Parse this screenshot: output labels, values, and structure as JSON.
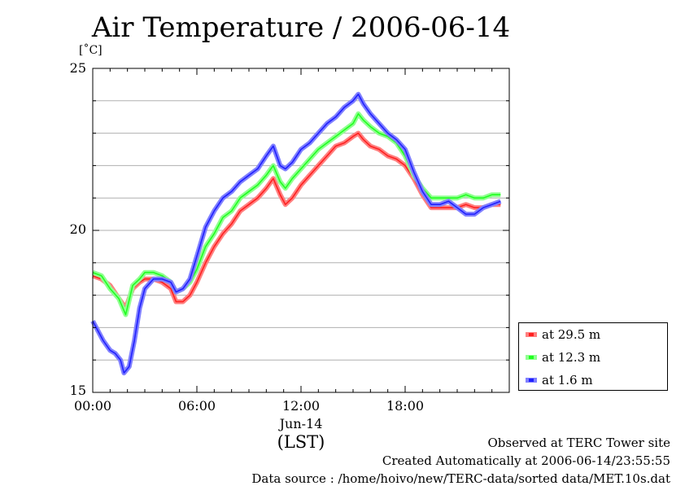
{
  "title": "Air Temperature / 2006-06-14",
  "unit": "[˚C]",
  "date_label": "Jun-14",
  "xlabel": "(LST)",
  "footer": {
    "line1": "Observed at TERC Tower site",
    "line2": "Created Automatically at 2006-06-14/23:55:55",
    "line3": "Data source : /home/hoivo/new/TERC-data/sorted  data/MET.10s.dat"
  },
  "chart_data": {
    "type": "line",
    "title": "Air Temperature / 2006-06-14",
    "xlabel": "(LST)",
    "ylabel": "[˚C]",
    "xlim": [
      0,
      24
    ],
    "ylim": [
      15,
      25
    ],
    "x_ticks": [
      "00:00",
      "06:00",
      "12:00",
      "18:00"
    ],
    "y_ticks": [
      "15",
      "20",
      "25"
    ],
    "grid": true,
    "legend": "bottom-right",
    "series": [
      {
        "name": "at 29.5 m",
        "color": "#ff2020",
        "light": "#ff8080",
        "points": [
          [
            0,
            18.6
          ],
          [
            0.5,
            18.5
          ],
          [
            1,
            18.3
          ],
          [
            1.5,
            17.9
          ],
          [
            1.9,
            17.6
          ],
          [
            2.3,
            18.2
          ],
          [
            2.7,
            18.4
          ],
          [
            3,
            18.5
          ],
          [
            3.5,
            18.5
          ],
          [
            4,
            18.4
          ],
          [
            4.5,
            18.2
          ],
          [
            4.8,
            17.8
          ],
          [
            5.2,
            17.8
          ],
          [
            5.6,
            18.0
          ],
          [
            6,
            18.4
          ],
          [
            6.5,
            19.0
          ],
          [
            7,
            19.5
          ],
          [
            7.5,
            19.9
          ],
          [
            8,
            20.2
          ],
          [
            8.5,
            20.6
          ],
          [
            9,
            20.8
          ],
          [
            9.5,
            21.0
          ],
          [
            10,
            21.3
          ],
          [
            10.4,
            21.6
          ],
          [
            10.8,
            21.1
          ],
          [
            11.1,
            20.8
          ],
          [
            11.5,
            21.0
          ],
          [
            12,
            21.4
          ],
          [
            12.5,
            21.7
          ],
          [
            13,
            22.0
          ],
          [
            13.5,
            22.3
          ],
          [
            14,
            22.6
          ],
          [
            14.5,
            22.7
          ],
          [
            15,
            22.9
          ],
          [
            15.3,
            23.0
          ],
          [
            15.6,
            22.8
          ],
          [
            16,
            22.6
          ],
          [
            16.5,
            22.5
          ],
          [
            17,
            22.3
          ],
          [
            17.5,
            22.2
          ],
          [
            18,
            22.0
          ],
          [
            18.5,
            21.6
          ],
          [
            19,
            21.1
          ],
          [
            19.5,
            20.7
          ],
          [
            20,
            20.7
          ],
          [
            20.5,
            20.7
          ],
          [
            21,
            20.7
          ],
          [
            21.5,
            20.8
          ],
          [
            22,
            20.7
          ],
          [
            22.5,
            20.7
          ],
          [
            23,
            20.8
          ],
          [
            23.5,
            20.8
          ]
        ]
      },
      {
        "name": "at 12.3 m",
        "color": "#20ff20",
        "light": "#90ff90",
        "points": [
          [
            0,
            18.7
          ],
          [
            0.5,
            18.6
          ],
          [
            1,
            18.2
          ],
          [
            1.5,
            17.9
          ],
          [
            1.9,
            17.4
          ],
          [
            2.3,
            18.3
          ],
          [
            2.7,
            18.5
          ],
          [
            3,
            18.7
          ],
          [
            3.5,
            18.7
          ],
          [
            4,
            18.6
          ],
          [
            4.5,
            18.4
          ],
          [
            4.8,
            18.1
          ],
          [
            5.2,
            18.2
          ],
          [
            5.6,
            18.4
          ],
          [
            6,
            18.8
          ],
          [
            6.5,
            19.5
          ],
          [
            7,
            19.9
          ],
          [
            7.5,
            20.4
          ],
          [
            8,
            20.6
          ],
          [
            8.5,
            21.0
          ],
          [
            9,
            21.2
          ],
          [
            9.5,
            21.4
          ],
          [
            10,
            21.7
          ],
          [
            10.4,
            22.0
          ],
          [
            10.8,
            21.5
          ],
          [
            11.1,
            21.3
          ],
          [
            11.5,
            21.6
          ],
          [
            12,
            21.9
          ],
          [
            12.5,
            22.2
          ],
          [
            13,
            22.5
          ],
          [
            13.5,
            22.7
          ],
          [
            14,
            22.9
          ],
          [
            14.5,
            23.1
          ],
          [
            15,
            23.3
          ],
          [
            15.3,
            23.6
          ],
          [
            15.6,
            23.4
          ],
          [
            16,
            23.2
          ],
          [
            16.5,
            23.0
          ],
          [
            17,
            22.9
          ],
          [
            17.5,
            22.7
          ],
          [
            18,
            22.3
          ],
          [
            18.5,
            21.7
          ],
          [
            19,
            21.3
          ],
          [
            19.5,
            21.0
          ],
          [
            20,
            21.0
          ],
          [
            20.5,
            21.0
          ],
          [
            21,
            21.0
          ],
          [
            21.5,
            21.1
          ],
          [
            22,
            21.0
          ],
          [
            22.5,
            21.0
          ],
          [
            23,
            21.1
          ],
          [
            23.5,
            21.1
          ]
        ]
      },
      {
        "name": "at 1.6 m",
        "color": "#2020ff",
        "light": "#8080ff",
        "points": [
          [
            0,
            17.2
          ],
          [
            0.3,
            16.9
          ],
          [
            0.6,
            16.6
          ],
          [
            1,
            16.3
          ],
          [
            1.3,
            16.2
          ],
          [
            1.6,
            16.0
          ],
          [
            1.8,
            15.6
          ],
          [
            2.1,
            15.8
          ],
          [
            2.4,
            16.6
          ],
          [
            2.7,
            17.6
          ],
          [
            3,
            18.2
          ],
          [
            3.5,
            18.5
          ],
          [
            4,
            18.5
          ],
          [
            4.5,
            18.4
          ],
          [
            4.8,
            18.1
          ],
          [
            5.2,
            18.2
          ],
          [
            5.6,
            18.5
          ],
          [
            6,
            19.2
          ],
          [
            6.5,
            20.1
          ],
          [
            7,
            20.6
          ],
          [
            7.5,
            21.0
          ],
          [
            8,
            21.2
          ],
          [
            8.5,
            21.5
          ],
          [
            9,
            21.7
          ],
          [
            9.5,
            21.9
          ],
          [
            10,
            22.3
          ],
          [
            10.4,
            22.6
          ],
          [
            10.8,
            22.0
          ],
          [
            11.1,
            21.9
          ],
          [
            11.5,
            22.1
          ],
          [
            12,
            22.5
          ],
          [
            12.5,
            22.7
          ],
          [
            13,
            23.0
          ],
          [
            13.5,
            23.3
          ],
          [
            14,
            23.5
          ],
          [
            14.5,
            23.8
          ],
          [
            15,
            24.0
          ],
          [
            15.3,
            24.2
          ],
          [
            15.6,
            23.9
          ],
          [
            16,
            23.6
          ],
          [
            16.5,
            23.3
          ],
          [
            17,
            23.0
          ],
          [
            17.5,
            22.8
          ],
          [
            18,
            22.5
          ],
          [
            18.5,
            21.8
          ],
          [
            19,
            21.2
          ],
          [
            19.5,
            20.8
          ],
          [
            20,
            20.8
          ],
          [
            20.5,
            20.9
          ],
          [
            21,
            20.7
          ],
          [
            21.5,
            20.5
          ],
          [
            22,
            20.5
          ],
          [
            22.5,
            20.7
          ],
          [
            23,
            20.8
          ],
          [
            23.5,
            20.9
          ]
        ]
      }
    ]
  }
}
